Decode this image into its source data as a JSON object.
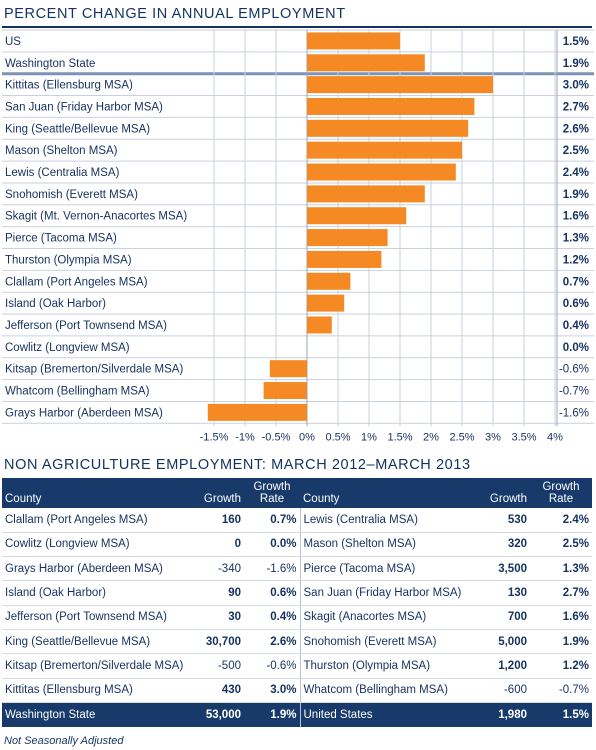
{
  "chart_data": {
    "type": "bar",
    "orientation": "horizontal",
    "title": "PERCENT CHANGE IN ANNUAL EMPLOYMENT",
    "xlim": [
      -1.5,
      4
    ],
    "ticks": [
      "-1.5%",
      "-1%",
      "-0.5%",
      "0%",
      "0.5%",
      "1%",
      "1.5%",
      "2%",
      "2.5%",
      "3%",
      "3.5%",
      "4%"
    ],
    "bar_color": "#f58a25",
    "categories": [
      "US",
      "Washington State",
      "Kittitas (Ellensburg MSA)",
      "San Juan (Friday Harbor MSA)",
      "King (Seattle/Bellevue MSA)",
      "Mason (Shelton MSA)",
      "Lewis (Centralia MSA)",
      "Snohomish (Everett MSA)",
      "Skagit (Mt. Vernon-Anacortes MSA)",
      "Pierce (Tacoma MSA)",
      "Thurston (Olympia MSA)",
      "Clallam (Port Angeles MSA)",
      "Island (Oak Harbor)",
      "Jefferson (Port Townsend MSA)",
      "Cowlitz (Longview MSA)",
      "Kitsap (Bremerton/Silverdale MSA)",
      "Whatcom (Bellingham MSA)",
      "Grays Harbor (Aberdeen MSA)"
    ],
    "values": [
      1.5,
      1.9,
      3.0,
      2.7,
      2.6,
      2.5,
      2.4,
      1.9,
      1.6,
      1.3,
      1.2,
      0.7,
      0.6,
      0.4,
      0.0,
      -0.6,
      -0.7,
      -1.6
    ],
    "value_labels": [
      "1.5%",
      "1.9%",
      "3.0%",
      "2.7%",
      "2.6%",
      "2.5%",
      "2.4%",
      "1.9%",
      "1.6%",
      "1.3%",
      "1.2%",
      "0.7%",
      "0.6%",
      "0.4%",
      "0.0%",
      "-0.6%",
      "-0.7%",
      "-1.6%"
    ]
  },
  "table": {
    "title": "NON AGRICULTURE EMPLOYMENT: MARCH 2012–MARCH 2013",
    "headers": {
      "county": "County",
      "growth": "Growth",
      "growth_rate_line1": "Growth",
      "growth_rate_line2": "Rate"
    },
    "rows": [
      {
        "c1": "Clallam (Port Angeles MSA)",
        "g1": "160",
        "r1": "0.7%",
        "c2": "Lewis (Centralia MSA)",
        "g2": "530",
        "r2": "2.4%"
      },
      {
        "c1": "Cowlitz (Longview MSA)",
        "g1": "0",
        "r1": "0.0%",
        "c2": "Mason (Shelton MSA)",
        "g2": "320",
        "r2": "2.5%"
      },
      {
        "c1": "Grays Harbor (Aberdeen MSA)",
        "g1": "-340",
        "r1": "-1.6%",
        "c2": "Pierce (Tacoma MSA)",
        "g2": "3,500",
        "r2": "1.3%"
      },
      {
        "c1": "Island (Oak Harbor)",
        "g1": "90",
        "r1": "0.6%",
        "c2": "San Juan (Friday Harbor MSA)",
        "g2": "130",
        "r2": "2.7%"
      },
      {
        "c1": "Jefferson (Port Townsend MSA)",
        "g1": "30",
        "r1": "0.4%",
        "c2": "Skagit (Anacortes MSA)",
        "g2": "700",
        "r2": "1.6%"
      },
      {
        "c1": "King (Seattle/Bellevue MSA)",
        "g1": "30,700",
        "r1": "2.6%",
        "c2": "Snohomish (Everett MSA)",
        "g2": "5,000",
        "r2": "1.9%"
      },
      {
        "c1": "Kitsap (Bremerton/Silverdale MSA)",
        "g1": "-500",
        "r1": "-0.6%",
        "c2": "Thurston (Olympia MSA)",
        "g2": "1,200",
        "r2": "1.2%"
      },
      {
        "c1": "Kittitas (Ellensburg MSA)",
        "g1": "430",
        "r1": "3.0%",
        "c2": "Whatcom (Bellingham MSA)",
        "g2": "-600",
        "r2": "-0.7%"
      }
    ],
    "total": {
      "c1": "Washington State",
      "g1": "53,000",
      "r1": "1.9%",
      "c2": "United States",
      "g2": "1,980",
      "r2": "1.5%"
    }
  },
  "footnote": "Not Seasonally Adjusted"
}
